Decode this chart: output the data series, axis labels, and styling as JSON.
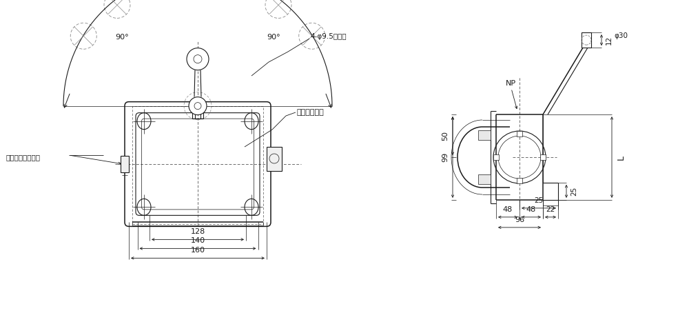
{
  "bg_color": "#ffffff",
  "line_color": "#1a1a1a",
  "fig_width": 10.0,
  "fig_height": 4.83,
  "dpi": 100,
  "annotations": {
    "bousui_gurando": "防水グランド",
    "blind_plug": "ブラインドプラグ",
    "NP": "NP",
    "phi95": "4-φ9.5取付穴",
    "dim_128": "128",
    "dim_140": "140",
    "dim_160": "160",
    "dim_99": "99",
    "dim_50": "50",
    "dim_48a": "48",
    "dim_48b": "48",
    "dim_96": "96",
    "dim_25h": "25",
    "dim_25v": "25",
    "dim_22": "22",
    "dim_12": "12",
    "dim_phi30": "φ30",
    "dim_L": "L",
    "angle_90L": "90°",
    "angle_90R": "90°"
  }
}
